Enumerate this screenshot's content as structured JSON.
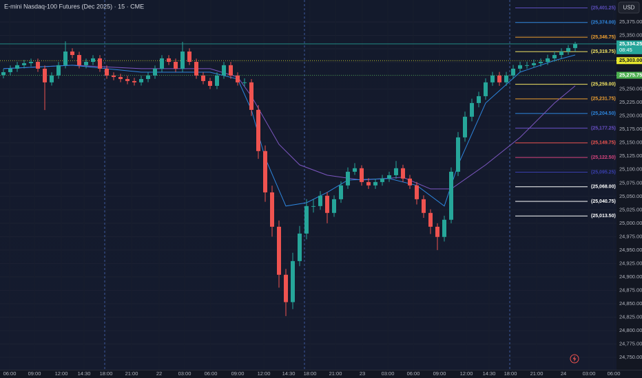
{
  "chart_data": {
    "type": "candlestick",
    "title": "E-mini Nasdaq-100 Futures (Dec 2025) · 15 · CME",
    "currency": "USD",
    "up_color": "#26a69a",
    "down_color": "#ef5350",
    "x": [
      0,
      1,
      2,
      3,
      4,
      5,
      6,
      7,
      8,
      9,
      10,
      11,
      12,
      13,
      14,
      15,
      16,
      17,
      18,
      19,
      20,
      21,
      22,
      23,
      24,
      25,
      26,
      27,
      28,
      29,
      30,
      31,
      32,
      33,
      34,
      35,
      36,
      37,
      38,
      39,
      40,
      41,
      42,
      43,
      44,
      45,
      46,
      47,
      48,
      49,
      50,
      51,
      52,
      53,
      54,
      55,
      56,
      57,
      58,
      59,
      60,
      61,
      62,
      63,
      64,
      65,
      66,
      67,
      68,
      69,
      70,
      71,
      72,
      73,
      74,
      75,
      76,
      77,
      78,
      79,
      80,
      81,
      82,
      83
    ],
    "open": [
      25276,
      25281.5,
      25288,
      25294.5,
      25298.25,
      25300.75,
      25288,
      25262.5,
      25275.25,
      25294.5,
      25320,
      25313.5,
      25294.5,
      25300.75,
      25307.25,
      25288,
      25275.25,
      25272.5,
      25268.75,
      25265,
      25262.5,
      25268.75,
      25275.25,
      25288,
      25307.25,
      25300.75,
      25288,
      25320,
      25300.75,
      25275.25,
      25265,
      25256,
      25275.25,
      25294.5,
      25275.25,
      25262.5,
      25262.5,
      25211.25,
      25134.5,
      25057.5,
      24993.5,
      24904,
      24853,
      24929.5,
      24980.75,
      25032,
      25032,
      25051.25,
      25019.25,
      25044.75,
      25070.5,
      25096,
      25102.5,
      25076.75,
      25070.5,
      25076.75,
      25083.25,
      25089.5,
      25102.5,
      25083.25,
      25070.5,
      25044.75,
      25019.25,
      24993.5,
      24974.5,
      25006.5,
      25096,
      25160,
      25198.5,
      25224,
      25236.75,
      25262.5,
      25275.25,
      25262.5,
      25275.25,
      25288,
      25294.5,
      25294.5,
      25298.25,
      25300.75,
      25307.25,
      25313.5,
      25320,
      25326.5
    ],
    "high": [
      25287.5,
      25294,
      25300.5,
      25304.25,
      25306.75,
      25306.75,
      25294,
      25281.25,
      25300.5,
      25339,
      25326,
      25319.5,
      25306.75,
      25313.25,
      25313.25,
      25294,
      25281.25,
      25278.5,
      25274.75,
      25271,
      25274.75,
      25281.25,
      25294,
      25313.25,
      25313.25,
      25306.75,
      25338,
      25326,
      25306.75,
      25281.25,
      25271,
      25281.25,
      25300.5,
      25300.5,
      25281.25,
      25270,
      25268.5,
      25220,
      25145,
      25070,
      25005,
      24915,
      24945,
      24995,
      25045,
      25045,
      25060,
      25058,
      25052,
      25078,
      25104,
      25112,
      25108,
      25084,
      25083,
      25090,
      25096,
      25116,
      25109,
      25090,
      25077,
      25052,
      25026,
      25000,
      25014,
      25104,
      25170,
      25208,
      25232,
      25245,
      25270,
      25282,
      25282,
      25282,
      25295,
      25301,
      25301,
      25305,
      25307,
      25314,
      25320,
      25326,
      25332,
      25338
    ],
    "low": [
      25270,
      25275.5,
      25282,
      25288.5,
      25292.25,
      25282,
      25211,
      25256.5,
      25269.25,
      25288.5,
      25307.5,
      25288.5,
      25288.5,
      25294.75,
      25282,
      25269.25,
      25266.5,
      25262.75,
      25259,
      25256.5,
      25256.5,
      25262.75,
      25269.25,
      25282,
      25294.75,
      25282,
      25282,
      25294.75,
      25269.25,
      25259,
      25250,
      25250,
      25269.25,
      25269.25,
      25256.5,
      25255,
      25200,
      25120,
      25040,
      24975,
      24880,
      24827,
      24840,
      24920,
      24970,
      25020,
      25025,
      25000,
      25012,
      25038,
      25064,
      25090,
      25070,
      25064,
      25064,
      25070,
      25077,
      25083,
      25077,
      25064,
      25035,
      25010,
      24980,
      24950,
      24966,
      25000,
      25088,
      25152,
      25190,
      25216,
      25230,
      25256,
      25256,
      25256,
      25269,
      25282,
      25288,
      25290,
      25292,
      25295,
      25301,
      25307,
      25314,
      25320
    ],
    "close": [
      25281.5,
      25288,
      25294.5,
      25298.25,
      25300.75,
      25288,
      25262.5,
      25275.25,
      25294.5,
      25320,
      25313.5,
      25294.5,
      25300.75,
      25307.25,
      25288,
      25275.25,
      25272.5,
      25268.75,
      25265,
      25262.5,
      25268.75,
      25275.25,
      25288,
      25307.25,
      25300.75,
      25288,
      25320,
      25300.75,
      25275.25,
      25265,
      25256,
      25275.25,
      25294.5,
      25275.25,
      25262.5,
      25262.5,
      25211.25,
      25134.5,
      25057.5,
      24993.5,
      24904,
      24853,
      24929.5,
      24980.75,
      25032,
      25032,
      25051.25,
      25019.25,
      25044.75,
      25070.5,
      25096,
      25102.5,
      25076.75,
      25070.5,
      25076.75,
      25083.25,
      25089.5,
      25102.5,
      25083.25,
      25070.5,
      25044.75,
      25019.25,
      24993.5,
      24974.5,
      25006.5,
      25096,
      25160,
      25198.5,
      25224,
      25236.75,
      25262.5,
      25275.25,
      25262.5,
      25275.25,
      25288,
      25294.5,
      25294.5,
      25298.25,
      25300.75,
      25307.25,
      25313.5,
      25320,
      25326.5,
      25334.25
    ],
    "overlays": [
      {
        "color": "#7e57c2",
        "x": [
          0,
          10,
          20,
          30,
          34,
          36,
          40,
          43,
          47,
          52,
          58,
          62,
          65,
          70,
          75,
          80,
          83
        ],
        "values": [
          25288,
          25294.5,
          25288,
          25288,
          25272.5,
          25236.75,
          25147,
          25108.75,
          25089.5,
          25080.5,
          25085.75,
          25064,
          25064,
          25108.75,
          25160,
          25224,
          25256
        ]
      },
      {
        "color": "#2e86de",
        "x": [
          0,
          10,
          20,
          30,
          34,
          36,
          38,
          41,
          44,
          47,
          50,
          56,
          60,
          64,
          66,
          70,
          75,
          80,
          83
        ],
        "values": [
          25288,
          25294.5,
          25281.5,
          25281.5,
          25268.75,
          25211.25,
          25121.5,
          25032,
          25038.25,
          25057.5,
          25080.5,
          25083.25,
          25070.5,
          25032,
          25108.75,
          25224,
          25281.5,
          25303.25,
          25313.5
        ]
      }
    ],
    "xlim": [
      -0.5,
      89
    ],
    "ylim": [
      24727,
      25416
    ],
    "xticks": [
      {
        "value": 0.9,
        "label": "06:00"
      },
      {
        "value": 4.5,
        "label": "09:00"
      },
      {
        "value": 8.4,
        "label": "12:00"
      },
      {
        "value": 11.7,
        "label": "14:30"
      },
      {
        "value": 14.9,
        "label": "18:00"
      },
      {
        "value": 18.6,
        "label": "21:00"
      },
      {
        "value": 22.6,
        "label": "22"
      },
      {
        "value": 26.3,
        "label": "03:00"
      },
      {
        "value": 30.1,
        "label": "06:00"
      },
      {
        "value": 34,
        "label": "09:00"
      },
      {
        "value": 37.8,
        "label": "12:00"
      },
      {
        "value": 41.4,
        "label": "14:30"
      },
      {
        "value": 44.5,
        "label": "18:00"
      },
      {
        "value": 48.2,
        "label": "21:00"
      },
      {
        "value": 52.1,
        "label": "23"
      },
      {
        "value": 55.8,
        "label": "03:00"
      },
      {
        "value": 59.5,
        "label": "06:00"
      },
      {
        "value": 63.3,
        "label": "09:00"
      },
      {
        "value": 67.2,
        "label": "12:00"
      },
      {
        "value": 70.5,
        "label": "14:30"
      },
      {
        "value": 73.6,
        "label": "18:00"
      },
      {
        "value": 77.4,
        "label": "21:00"
      },
      {
        "value": 81.3,
        "label": "24"
      },
      {
        "value": 85,
        "label": "03:00"
      },
      {
        "value": 88.6,
        "label": "06:00"
      }
    ],
    "yticks": [
      {
        "value": 24750,
        "label": "24,750.00"
      },
      {
        "value": 24775,
        "label": "24,775.00"
      },
      {
        "value": 24800,
        "label": "24,800.00"
      },
      {
        "value": 24825,
        "label": "24,825.00"
      },
      {
        "value": 24850,
        "label": "24,850.00"
      },
      {
        "value": 24875,
        "label": "24,875.00"
      },
      {
        "value": 24900,
        "label": "24,900.00"
      },
      {
        "value": 24925,
        "label": "24,925.00"
      },
      {
        "value": 24950,
        "label": "24,950.00"
      },
      {
        "value": 24975,
        "label": "24,975.00"
      },
      {
        "value": 25000,
        "label": "25,000.00"
      },
      {
        "value": 25025,
        "label": "25,025.00"
      },
      {
        "value": 25050,
        "label": "25,050.00"
      },
      {
        "value": 25075,
        "label": "25,075.00"
      },
      {
        "value": 25100,
        "label": "25,100.00"
      },
      {
        "value": 25125,
        "label": "25,125.00"
      },
      {
        "value": 25150,
        "label": "25,150.00"
      },
      {
        "value": 25175,
        "label": "25,175.00"
      },
      {
        "value": 25200,
        "label": "25,200.00"
      },
      {
        "value": 25225,
        "label": "25,225.00"
      },
      {
        "value": 25250,
        "label": "25,250.00"
      },
      {
        "value": 25275,
        "label": "25,275.00"
      },
      {
        "value": 25300,
        "label": "25,300.00"
      },
      {
        "value": 25325,
        "label": "25,325.00"
      },
      {
        "value": 25350,
        "label": "25,350.00"
      },
      {
        "value": 25375,
        "label": "25,375.00"
      }
    ],
    "session_breaks": [
      14.7,
      43.7,
      73.5
    ],
    "levels": [
      {
        "label": "(25,401.25)",
        "value": 25401.25,
        "color": "#5e4fc0"
      },
      {
        "label": "(25,374.00)",
        "value": 25374.0,
        "color": "#2e86de"
      },
      {
        "label": "(25,346.75)",
        "value": 25346.75,
        "color": "#f0a030"
      },
      {
        "label": "(25,319.75)",
        "value": 25319.75,
        "color": "#f5e663"
      },
      {
        "label": "(25,259.00)",
        "value": 25259.0,
        "color": "#f5e663"
      },
      {
        "label": "(25,231.75)",
        "value": 25231.75,
        "color": "#f0a030"
      },
      {
        "label": "(25,204.50)",
        "value": 25204.5,
        "color": "#2e86de"
      },
      {
        "label": "(25,177.25)",
        "value": 25177.25,
        "color": "#6a4fc8"
      },
      {
        "label": "(25,149.75)",
        "value": 25149.75,
        "color": "#ef5350"
      },
      {
        "label": "(25,122.50)",
        "value": 25122.5,
        "color": "#d6437e"
      },
      {
        "label": "(25,095.25)",
        "value": 25095.25,
        "color": "#3a3fb0"
      },
      {
        "label": "(25,068.00)",
        "value": 25068.0,
        "color": "#ffffff"
      },
      {
        "label": "(25,040.75)",
        "value": 25040.75,
        "color": "#ffffff"
      },
      {
        "label": "(25,013.50)",
        "value": 25013.5,
        "color": "#ffffff"
      }
    ],
    "price_tags": [
      {
        "label": "25,334.25",
        "sub": "08:45",
        "value": 25334.25,
        "color": "#26a69a",
        "line": "solid"
      },
      {
        "label": "25,303.00",
        "value": 25303.0,
        "color": "#e6e62e",
        "line": "dotted"
      },
      {
        "label": "25,275.75",
        "value": 25275.75,
        "color": "#4caf50",
        "line": "dotted"
      }
    ]
  }
}
